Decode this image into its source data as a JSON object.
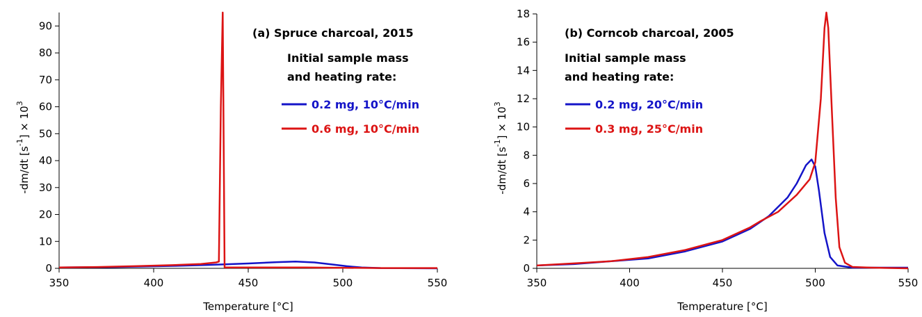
{
  "chart_data": [
    {
      "type": "line",
      "title": "(a)  Spruce charcoal, 2015",
      "annotations": [
        "Initial sample mass",
        "and heating rate:"
      ],
      "xlabel": "Temperature  [°C]",
      "ylabel": [
        "-dm/dt  [s",
        "-1",
        "]  × 10",
        "3"
      ],
      "xlim": [
        350,
        550
      ],
      "xticks": [
        350,
        400,
        450,
        500,
        550
      ],
      "ylim": [
        0,
        95
      ],
      "yticks": [
        0,
        10,
        20,
        30,
        40,
        50,
        60,
        70,
        80,
        90
      ],
      "series": [
        {
          "name": "0.2 mg, 10°C/min",
          "color": "#1414c8",
          "x": [
            350,
            380,
            410,
            430,
            450,
            465,
            475,
            485,
            495,
            502,
            510,
            520,
            550
          ],
          "values": [
            0.3,
            0.5,
            0.9,
            1.3,
            1.8,
            2.3,
            2.5,
            2.2,
            1.4,
            0.8,
            0.3,
            0.1,
            0
          ]
        },
        {
          "name": "0.6 mg, 10°C/min",
          "color": "#dc1414",
          "x": [
            350,
            370,
            390,
            410,
            425,
            433,
            434.5,
            435.5,
            436.5,
            437.5,
            440,
            460,
            480,
            500,
            520,
            550
          ],
          "values": [
            0.3,
            0.5,
            0.8,
            1.2,
            1.6,
            2.2,
            2.5,
            60,
            95,
            0.3,
            0.3,
            0.3,
            0.3,
            0.2,
            0.1,
            0.1
          ]
        }
      ]
    },
    {
      "type": "line",
      "title": "(b)  Corncob charcoal, 2005",
      "annotations": [
        "Initial sample mass",
        "and heating rate:"
      ],
      "xlabel": "Temperature  [°C]",
      "ylabel": [
        "-dm/dt  [s",
        "-1",
        "]  × 10",
        "3"
      ],
      "xlim": [
        350,
        550
      ],
      "xticks": [
        350,
        400,
        450,
        500,
        550
      ],
      "ylim": [
        0,
        18
      ],
      "yticks": [
        0,
        2,
        4,
        6,
        8,
        10,
        12,
        14,
        16,
        18
      ],
      "series": [
        {
          "name": "0.2 mg, 20°C/min",
          "color": "#1414c8",
          "x": [
            350,
            370,
            390,
            410,
            430,
            450,
            465,
            475,
            485,
            490,
            495,
            498,
            500,
            502,
            505,
            508,
            512,
            520,
            550
          ],
          "values": [
            0.2,
            0.3,
            0.5,
            0.7,
            1.2,
            1.9,
            2.8,
            3.7,
            5,
            6,
            7.3,
            7.7,
            7.2,
            5.5,
            2.5,
            0.8,
            0.2,
            0.05,
            0.05
          ]
        },
        {
          "name": "0.3 mg, 25°C/min",
          "color": "#dc1414",
          "x": [
            350,
            370,
            390,
            410,
            430,
            450,
            465,
            470,
            480,
            490,
            497,
            500,
            503,
            505,
            506,
            507,
            509,
            511,
            513,
            516,
            520,
            530,
            550
          ],
          "values": [
            0.2,
            0.35,
            0.5,
            0.8,
            1.3,
            2,
            2.9,
            3.3,
            4,
            5.2,
            6.3,
            7.5,
            12,
            17,
            18.1,
            17,
            11,
            5,
            1.5,
            0.4,
            0.1,
            0.05,
            0
          ]
        }
      ]
    }
  ]
}
